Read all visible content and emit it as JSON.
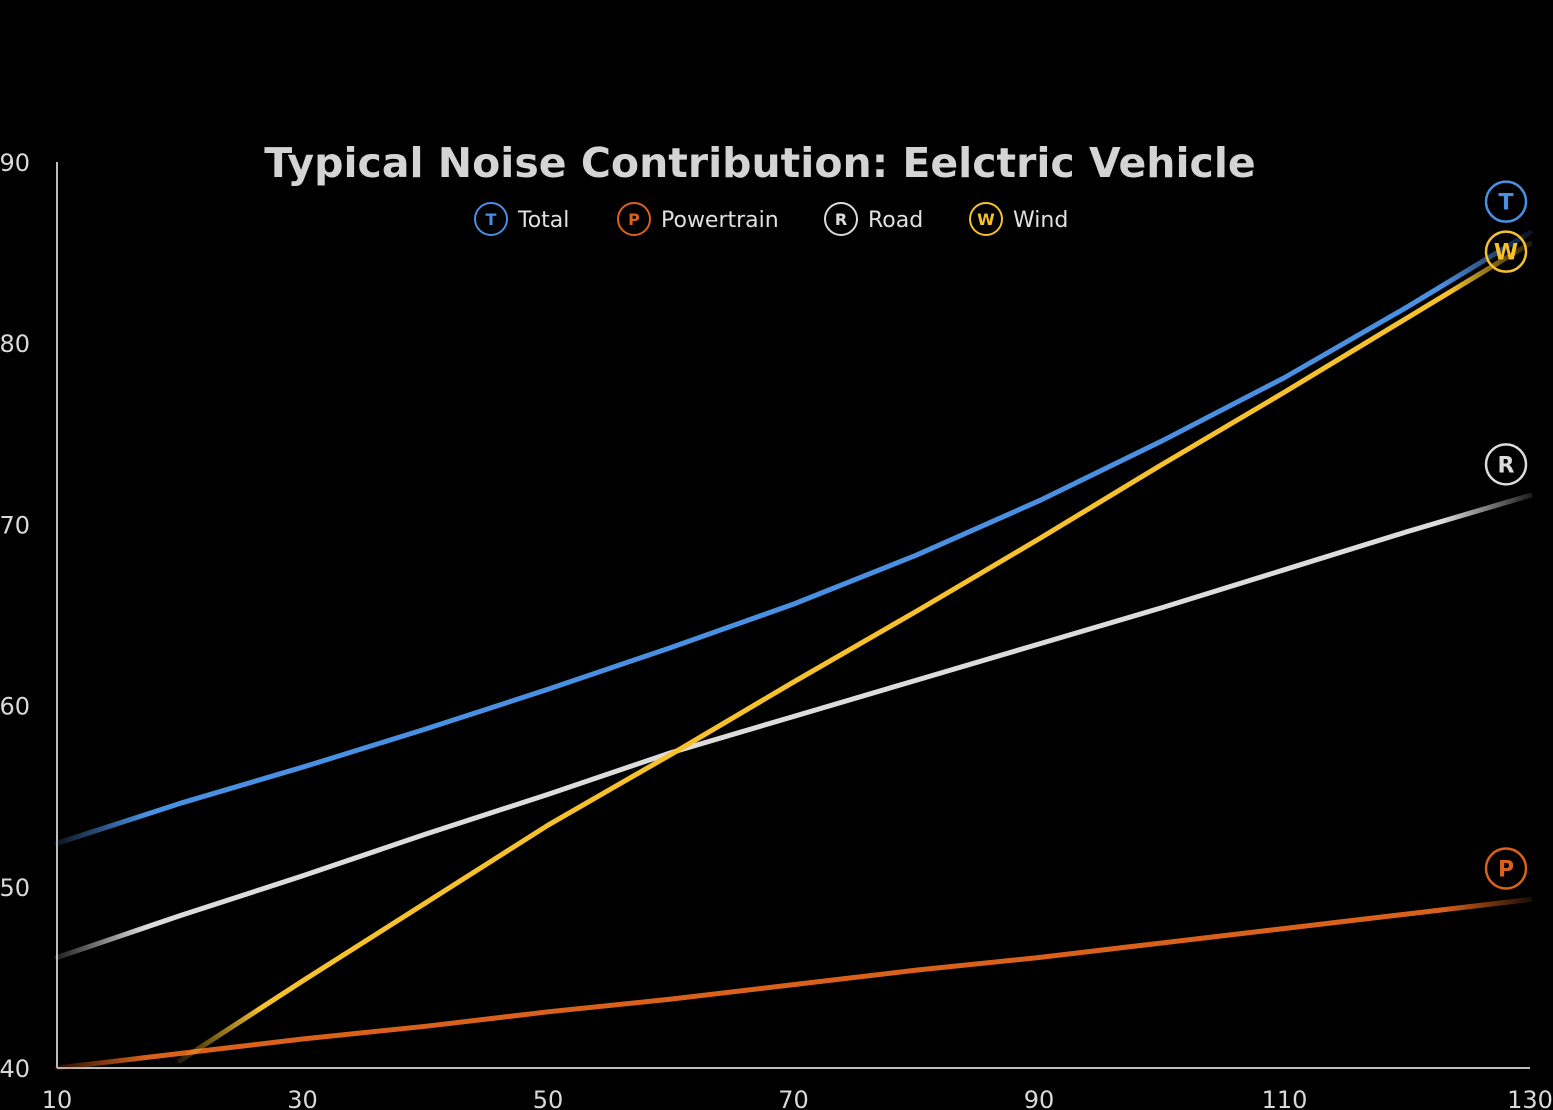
{
  "chart_data": {
    "type": "line",
    "title": "Typical Noise Contribution: Eelctric Vehicle",
    "xlabel": "",
    "ylabel": "",
    "xlim": [
      10,
      130
    ],
    "ylim": [
      40,
      90
    ],
    "x_ticks": [
      "10",
      "30",
      "50",
      "70",
      "90",
      "110",
      "130"
    ],
    "y_ticks": [
      "40",
      "50",
      "60",
      "70",
      "80",
      "90"
    ],
    "grid": false,
    "legend_position": "top-center",
    "x": [
      10,
      20,
      30,
      40,
      50,
      60,
      70,
      80,
      90,
      100,
      110,
      120,
      130
    ],
    "series": [
      {
        "name": "Total",
        "badge": "T",
        "color": "#4a90e2",
        "values": [
          52.4,
          54.6,
          56.6,
          58.7,
          60.9,
          63.2,
          65.6,
          68.3,
          71.3,
          74.6,
          78.1,
          82.0,
          86.1
        ]
      },
      {
        "name": "Powertrain",
        "badge": "P",
        "color": "#d9611c",
        "values": [
          40.0,
          40.8,
          41.6,
          42.3,
          43.1,
          43.8,
          44.6,
          45.4,
          46.1,
          46.9,
          47.7,
          48.5,
          49.3
        ]
      },
      {
        "name": "Road",
        "badge": "R",
        "color": "#dcdcdc",
        "values": [
          46.1,
          48.4,
          50.6,
          52.9,
          55.1,
          57.4,
          59.4,
          61.4,
          63.4,
          65.4,
          67.5,
          69.6,
          71.6
        ]
      },
      {
        "name": "Wind",
        "badge": "W",
        "color": "#f6c12c",
        "values": [
          null,
          40.4,
          44.8,
          49.1,
          53.4,
          57.3,
          61.3,
          65.2,
          69.2,
          73.3,
          77.3,
          81.4,
          85.5
        ]
      }
    ]
  }
}
